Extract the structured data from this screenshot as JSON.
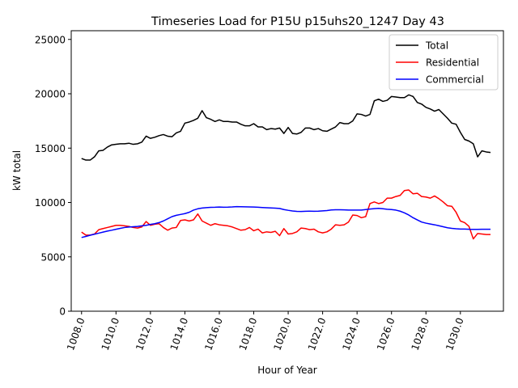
{
  "chart_data": {
    "type": "line",
    "title": "Timeseries Load for P15U p15uhs20_1247  Day 43",
    "xlabel": "Hour of Year",
    "ylabel": "kW total",
    "xlim": [
      1007.4,
      1032.5
    ],
    "ylim": [
      0,
      25800
    ],
    "xticks": [
      1008,
      1010,
      1012,
      1014,
      1016,
      1018,
      1020,
      1022,
      1024,
      1026,
      1028,
      1030
    ],
    "xtick_labels": [
      "1008.0",
      "1010.0",
      "1012.0",
      "1014.0",
      "1016.0",
      "1018.0",
      "1020.0",
      "1022.0",
      "1024.0",
      "1026.0",
      "1028.0",
      "1030.0"
    ],
    "yticks": [
      0,
      5000,
      10000,
      15000,
      20000,
      25000
    ],
    "ytick_labels": [
      "0",
      "5000",
      "10000",
      "15000",
      "20000",
      "25000"
    ],
    "grid": false,
    "legend_position": "top-right",
    "x": [
      1008.0,
      1008.25,
      1008.5,
      1008.75,
      1009.0,
      1009.25,
      1009.5,
      1009.75,
      1010.0,
      1010.25,
      1010.5,
      1010.75,
      1011.0,
      1011.25,
      1011.5,
      1011.75,
      1012.0,
      1012.25,
      1012.5,
      1012.75,
      1013.0,
      1013.25,
      1013.5,
      1013.75,
      1014.0,
      1014.25,
      1014.5,
      1014.75,
      1015.0,
      1015.25,
      1015.5,
      1015.75,
      1016.0,
      1016.25,
      1016.5,
      1016.75,
      1017.0,
      1017.25,
      1017.5,
      1017.75,
      1018.0,
      1018.25,
      1018.5,
      1018.75,
      1019.0,
      1019.25,
      1019.5,
      1019.75,
      1020.0,
      1020.25,
      1020.5,
      1020.75,
      1021.0,
      1021.25,
      1021.5,
      1021.75,
      1022.0,
      1022.25,
      1022.5,
      1022.75,
      1023.0,
      1023.25,
      1023.5,
      1023.75,
      1024.0,
      1024.25,
      1024.5,
      1024.75,
      1025.0,
      1025.25,
      1025.5,
      1025.75,
      1026.0,
      1026.25,
      1026.5,
      1026.75,
      1027.0,
      1027.25,
      1027.5,
      1027.75,
      1028.0,
      1028.25,
      1028.5,
      1028.75,
      1029.0,
      1029.25,
      1029.5,
      1029.75,
      1030.0,
      1030.25,
      1030.5,
      1030.75,
      1031.0,
      1031.25,
      1031.5,
      1031.75
    ],
    "series": [
      {
        "name": "Total",
        "color": "#000000",
        "values": [
          14050,
          13900,
          13900,
          14200,
          14750,
          14800,
          15100,
          15300,
          15350,
          15400,
          15400,
          15450,
          15350,
          15400,
          15550,
          16100,
          15900,
          16000,
          16150,
          16250,
          16100,
          16050,
          16400,
          16550,
          17300,
          17400,
          17550,
          17750,
          18450,
          17800,
          17650,
          17450,
          17600,
          17450,
          17450,
          17400,
          17400,
          17200,
          17050,
          17050,
          17250,
          16950,
          16950,
          16700,
          16800,
          16750,
          16850,
          16350,
          16900,
          16350,
          16300,
          16450,
          16850,
          16850,
          16700,
          16800,
          16600,
          16550,
          16750,
          16950,
          17350,
          17250,
          17250,
          17500,
          18150,
          18100,
          17950,
          18100,
          19350,
          19500,
          19300,
          19400,
          19750,
          19700,
          19650,
          19650,
          19900,
          19750,
          19200,
          19050,
          18750,
          18600,
          18400,
          18550,
          18150,
          17750,
          17300,
          17200,
          16450,
          15800,
          15650,
          15400,
          14200,
          14750,
          14650,
          14600
        ]
      },
      {
        "name": "Residential",
        "color": "#ff0000",
        "values": [
          7280,
          7000,
          7000,
          7100,
          7500,
          7600,
          7700,
          7800,
          7900,
          7900,
          7850,
          7800,
          7700,
          7650,
          7750,
          8250,
          7900,
          8000,
          8050,
          7700,
          7450,
          7650,
          7700,
          8350,
          8400,
          8300,
          8400,
          8950,
          8300,
          8100,
          7900,
          8050,
          7950,
          7900,
          7850,
          7750,
          7600,
          7450,
          7500,
          7700,
          7400,
          7550,
          7200,
          7300,
          7250,
          7350,
          6950,
          7600,
          7100,
          7150,
          7300,
          7650,
          7600,
          7500,
          7550,
          7300,
          7200,
          7300,
          7550,
          7950,
          7900,
          7950,
          8200,
          8850,
          8800,
          8600,
          8700,
          9900,
          10050,
          9900,
          10000,
          10400,
          10400,
          10550,
          10650,
          11100,
          11150,
          10800,
          10850,
          10550,
          10500,
          10400,
          10600,
          10350,
          10050,
          9700,
          9650,
          9100,
          8300,
          8150,
          7800,
          6650,
          7150,
          7100,
          7050,
          7050
        ]
      },
      {
        "name": "Commercial",
        "color": "#0000ff",
        "values": [
          6780,
          6880,
          6990,
          7080,
          7180,
          7280,
          7370,
          7450,
          7540,
          7620,
          7700,
          7740,
          7770,
          7800,
          7850,
          7900,
          7980,
          8050,
          8150,
          8300,
          8500,
          8700,
          8820,
          8900,
          8980,
          9100,
          9300,
          9420,
          9490,
          9530,
          9550,
          9560,
          9580,
          9560,
          9570,
          9590,
          9620,
          9610,
          9600,
          9590,
          9580,
          9560,
          9540,
          9520,
          9500,
          9480,
          9450,
          9350,
          9280,
          9220,
          9180,
          9170,
          9190,
          9200,
          9190,
          9200,
          9230,
          9260,
          9310,
          9330,
          9330,
          9320,
          9300,
          9300,
          9300,
          9300,
          9350,
          9400,
          9430,
          9460,
          9420,
          9380,
          9350,
          9300,
          9200,
          9050,
          8850,
          8600,
          8400,
          8200,
          8100,
          8020,
          7950,
          7860,
          7770,
          7680,
          7620,
          7580,
          7560,
          7560,
          7540,
          7530,
          7530,
          7540,
          7540,
          7540
        ]
      }
    ]
  }
}
